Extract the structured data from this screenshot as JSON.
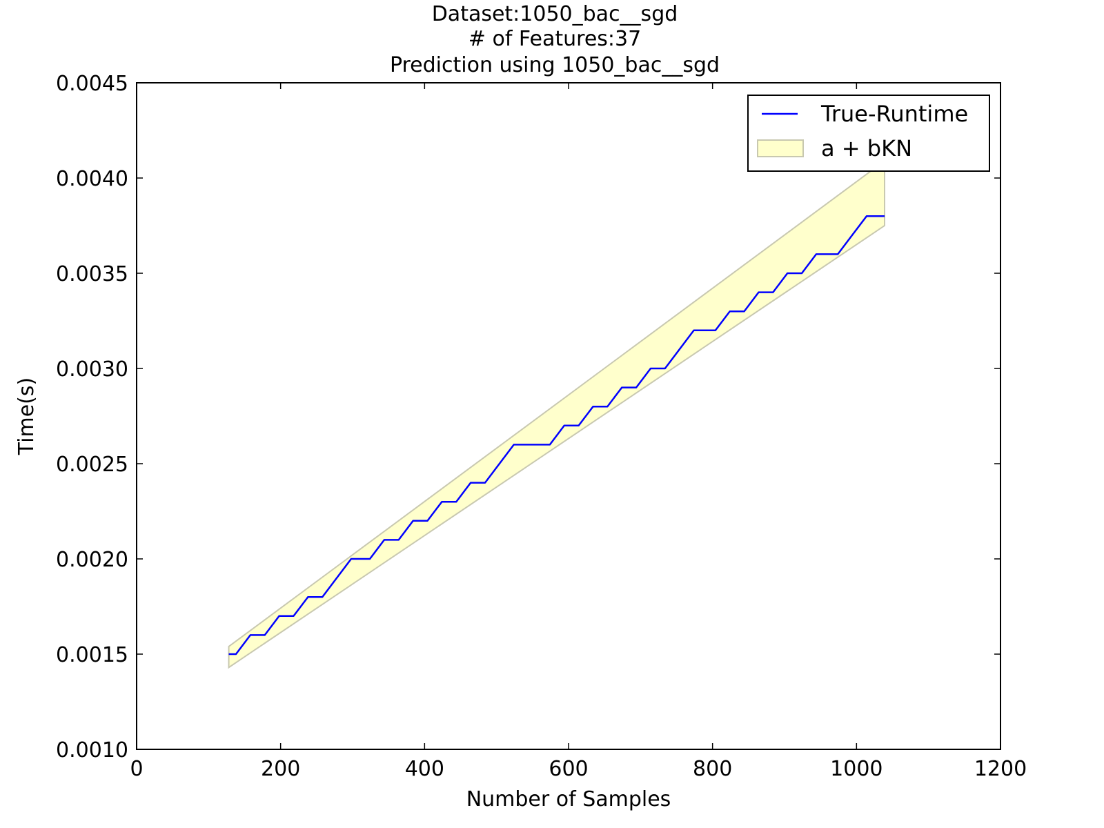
{
  "chart_data": {
    "type": "line",
    "title_lines": [
      "Dataset:1050_bac__sgd",
      "# of Features:37",
      "Prediction using 1050_bac__sgd"
    ],
    "xlabel": "Number of Samples",
    "ylabel": "Time(s)",
    "xlim": [
      0,
      1200
    ],
    "ylim": [
      0.001,
      0.0045
    ],
    "xticks": [
      0,
      200,
      400,
      600,
      800,
      1000,
      1200
    ],
    "xtick_labels": [
      "0",
      "200",
      "400",
      "600",
      "800",
      "1000",
      "1200"
    ],
    "yticks": [
      0.001,
      0.0015,
      0.002,
      0.0025,
      0.003,
      0.0035,
      0.004,
      0.0045
    ],
    "ytick_labels": [
      "0.0010",
      "0.0015",
      "0.0020",
      "0.0025",
      "0.0030",
      "0.0035",
      "0.0040",
      "0.0045"
    ],
    "grid": false,
    "legend_position": "top-right",
    "series": [
      {
        "name": "True-Runtime",
        "kind": "line",
        "color": "#0000ff",
        "x": [
          128,
          138,
          158,
          178,
          198,
          218,
          238,
          258,
          278,
          298,
          304,
          324,
          344,
          364,
          384,
          404,
          424,
          444,
          464,
          484,
          504,
          524,
          534,
          554,
          574,
          594,
          614,
          634,
          654,
          674,
          694,
          714,
          734,
          754,
          774,
          784,
          804,
          824,
          844,
          864,
          884,
          904,
          924,
          944,
          964,
          974,
          994,
          1014,
          1039
        ],
        "y": [
          0.0015,
          0.0015,
          0.0016,
          0.0016,
          0.0017,
          0.0017,
          0.0018,
          0.0018,
          0.0019,
          0.002,
          0.002,
          0.002,
          0.0021,
          0.0021,
          0.0022,
          0.0022,
          0.0023,
          0.0023,
          0.0024,
          0.0024,
          0.0025,
          0.0026,
          0.0026,
          0.0026,
          0.0026,
          0.0027,
          0.0027,
          0.0028,
          0.0028,
          0.0029,
          0.0029,
          0.003,
          0.003,
          0.0031,
          0.0032,
          0.0032,
          0.0032,
          0.0033,
          0.0033,
          0.0034,
          0.0034,
          0.0035,
          0.0035,
          0.0036,
          0.0036,
          0.0036,
          0.0037,
          0.0038,
          0.0038
        ]
      },
      {
        "name": "a + bKN",
        "kind": "band",
        "fill_color": "#ffffcc",
        "edge_color": "#c8c8b0",
        "x": [
          128,
          1039
        ],
        "lower": [
          0.00143,
          0.00375
        ],
        "upper": [
          0.00154,
          0.00409
        ]
      }
    ]
  }
}
